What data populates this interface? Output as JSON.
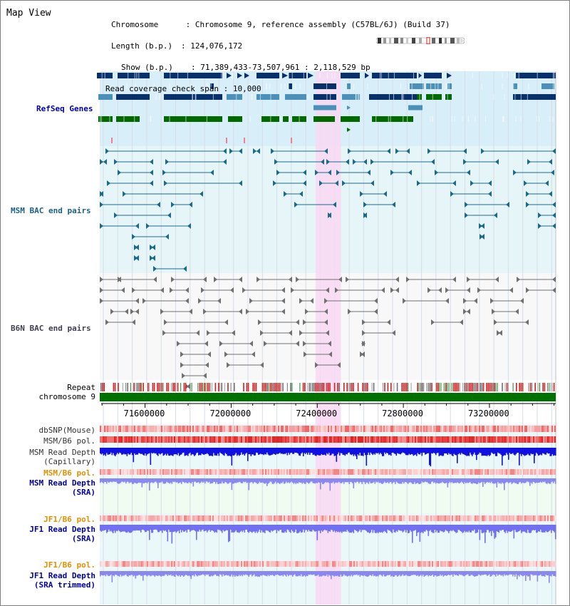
{
  "title": "Map View",
  "header": {
    "chromosome_label": "Chromosome",
    "chromosome_value": "Chromosome 9, reference assembly (C57BL/6J) (Build 37)",
    "length_label": "Length (b.p.)",
    "length_value": "124,076,172",
    "show_label": "Show (b.p.)",
    "show_value": "71,389,433-73,507,961 : 2,118,529 bp",
    "span_label": "Read coverage check span",
    "span_value": "10,000"
  },
  "tracks": {
    "refseq": "RefSeq Genes",
    "msm_bac": "MSM BAC end pairs",
    "b6n_bac": "B6N BAC end pairs",
    "repeat": "Repeat",
    "chromosome": "chromosome 9",
    "dbsnp": "dbSNP(Mouse)",
    "msm_b6_pol_1": "MSM/B6 pol.",
    "msm_read_depth_cap_1": "MSM Read Depth",
    "msm_read_depth_cap_2": "(Capillary)",
    "msm_b6_pol_2": "MSM/B6 pol.",
    "msm_read_depth_sra_1": "MSM Read Depth",
    "msm_read_depth_sra_2": "(SRA)",
    "jf1_b6_pol_1": "JF1/B6 pol.",
    "jf1_read_depth_sra_1": "JF1 Read Depth",
    "jf1_read_depth_sra_2": "(SRA)",
    "jf1_b6_pol_2": "JF1/B6 pol.",
    "jf1_read_depth_trim_1": "JF1 Read Depth",
    "jf1_read_depth_trim_2": "(SRA trimmed)"
  },
  "axis": {
    "ticks": [
      "71600000",
      "72000000",
      "72400000",
      "72800000",
      "73200000"
    ],
    "tick_values": [
      71600000,
      72000000,
      72400000,
      72800000,
      73200000
    ],
    "range": [
      71389433,
      73507961
    ]
  },
  "highlight": {
    "start": 72392000,
    "end": 72510000
  },
  "colors": {
    "refseq_bg": "#d8eef8",
    "msm_bg": "#e6f6f8",
    "b6n_bg": "#f8f8f8",
    "highlight": "#f9d8f3",
    "dark_navy": "#08306b",
    "medium_blue": "#4a90b8",
    "green": "#006a00",
    "teal": "#1a6a8a",
    "gray": "#707070",
    "chrom_green": "#007000",
    "label_blue": "#0000a0",
    "label_teal": "#1a5f8a",
    "label_orange": "#e09000",
    "label_gray": "#404050"
  }
}
